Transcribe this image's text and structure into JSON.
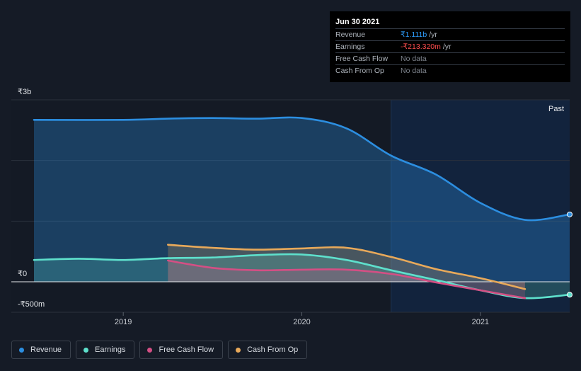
{
  "tooltip": {
    "date": "Jun 30 2021",
    "rows": [
      {
        "label": "Revenue",
        "value": "₹1.111b",
        "unit": "/yr",
        "color": "#2e9fff"
      },
      {
        "label": "Earnings",
        "value": "-₹213.320m",
        "unit": "/yr",
        "color": "#ff4d4d"
      },
      {
        "label": "Free Cash Flow",
        "value": "No data",
        "unit": "",
        "color": "#7d838c"
      },
      {
        "label": "Cash From Op",
        "value": "No data",
        "unit": "",
        "color": "#7d838c"
      }
    ]
  },
  "legend": [
    {
      "label": "Revenue",
      "color": "#2c8ee0"
    },
    {
      "label": "Earnings",
      "color": "#5ee0cc"
    },
    {
      "label": "Free Cash Flow",
      "color": "#d44f84"
    },
    {
      "label": "Cash From Op",
      "color": "#e8a95a"
    }
  ],
  "chart_data": {
    "type": "line",
    "y_tick_labels": [
      "₹3b",
      "₹0",
      "-₹500m"
    ],
    "ylim": [
      -500,
      3000
    ],
    "y_unit": "₹m",
    "xlim": [
      2018.5,
      2021.5
    ],
    "x_tick_labels": [
      "2019",
      "2020",
      "2021"
    ],
    "x_ticks": [
      2019,
      2020,
      2021
    ],
    "past_label": "Past",
    "past_start": 2020.5,
    "series": [
      {
        "name": "Revenue",
        "color": "#2c8ee0",
        "x": [
          2018.5,
          2019.0,
          2019.25,
          2019.5,
          2019.75,
          2020.0,
          2020.25,
          2020.5,
          2020.75,
          2021.0,
          2021.25,
          2021.5
        ],
        "y": [
          2670,
          2670,
          2690,
          2700,
          2690,
          2700,
          2530,
          2080,
          1770,
          1300,
          1020,
          1111
        ]
      },
      {
        "name": "Earnings",
        "color": "#5ee0cc",
        "x": [
          2018.5,
          2018.75,
          2019.0,
          2019.25,
          2019.5,
          2019.75,
          2020.0,
          2020.25,
          2020.5,
          2020.75,
          2021.0,
          2021.25,
          2021.5
        ],
        "y": [
          360,
          380,
          360,
          390,
          400,
          440,
          450,
          360,
          190,
          30,
          -140,
          -270,
          -213
        ]
      },
      {
        "name": "Free Cash Flow",
        "color": "#d44f84",
        "x": [
          2019.25,
          2019.5,
          2019.75,
          2020.0,
          2020.25,
          2020.5,
          2020.75,
          2021.0,
          2021.25
        ],
        "y": [
          350,
          230,
          190,
          200,
          200,
          130,
          -10,
          -140,
          -270
        ]
      },
      {
        "name": "Cash From Op",
        "color": "#e8a95a",
        "x": [
          2019.25,
          2019.5,
          2019.75,
          2020.0,
          2020.25,
          2020.5,
          2020.75,
          2021.0,
          2021.25
        ],
        "y": [
          610,
          560,
          530,
          550,
          560,
          410,
          210,
          60,
          -120
        ]
      }
    ]
  }
}
